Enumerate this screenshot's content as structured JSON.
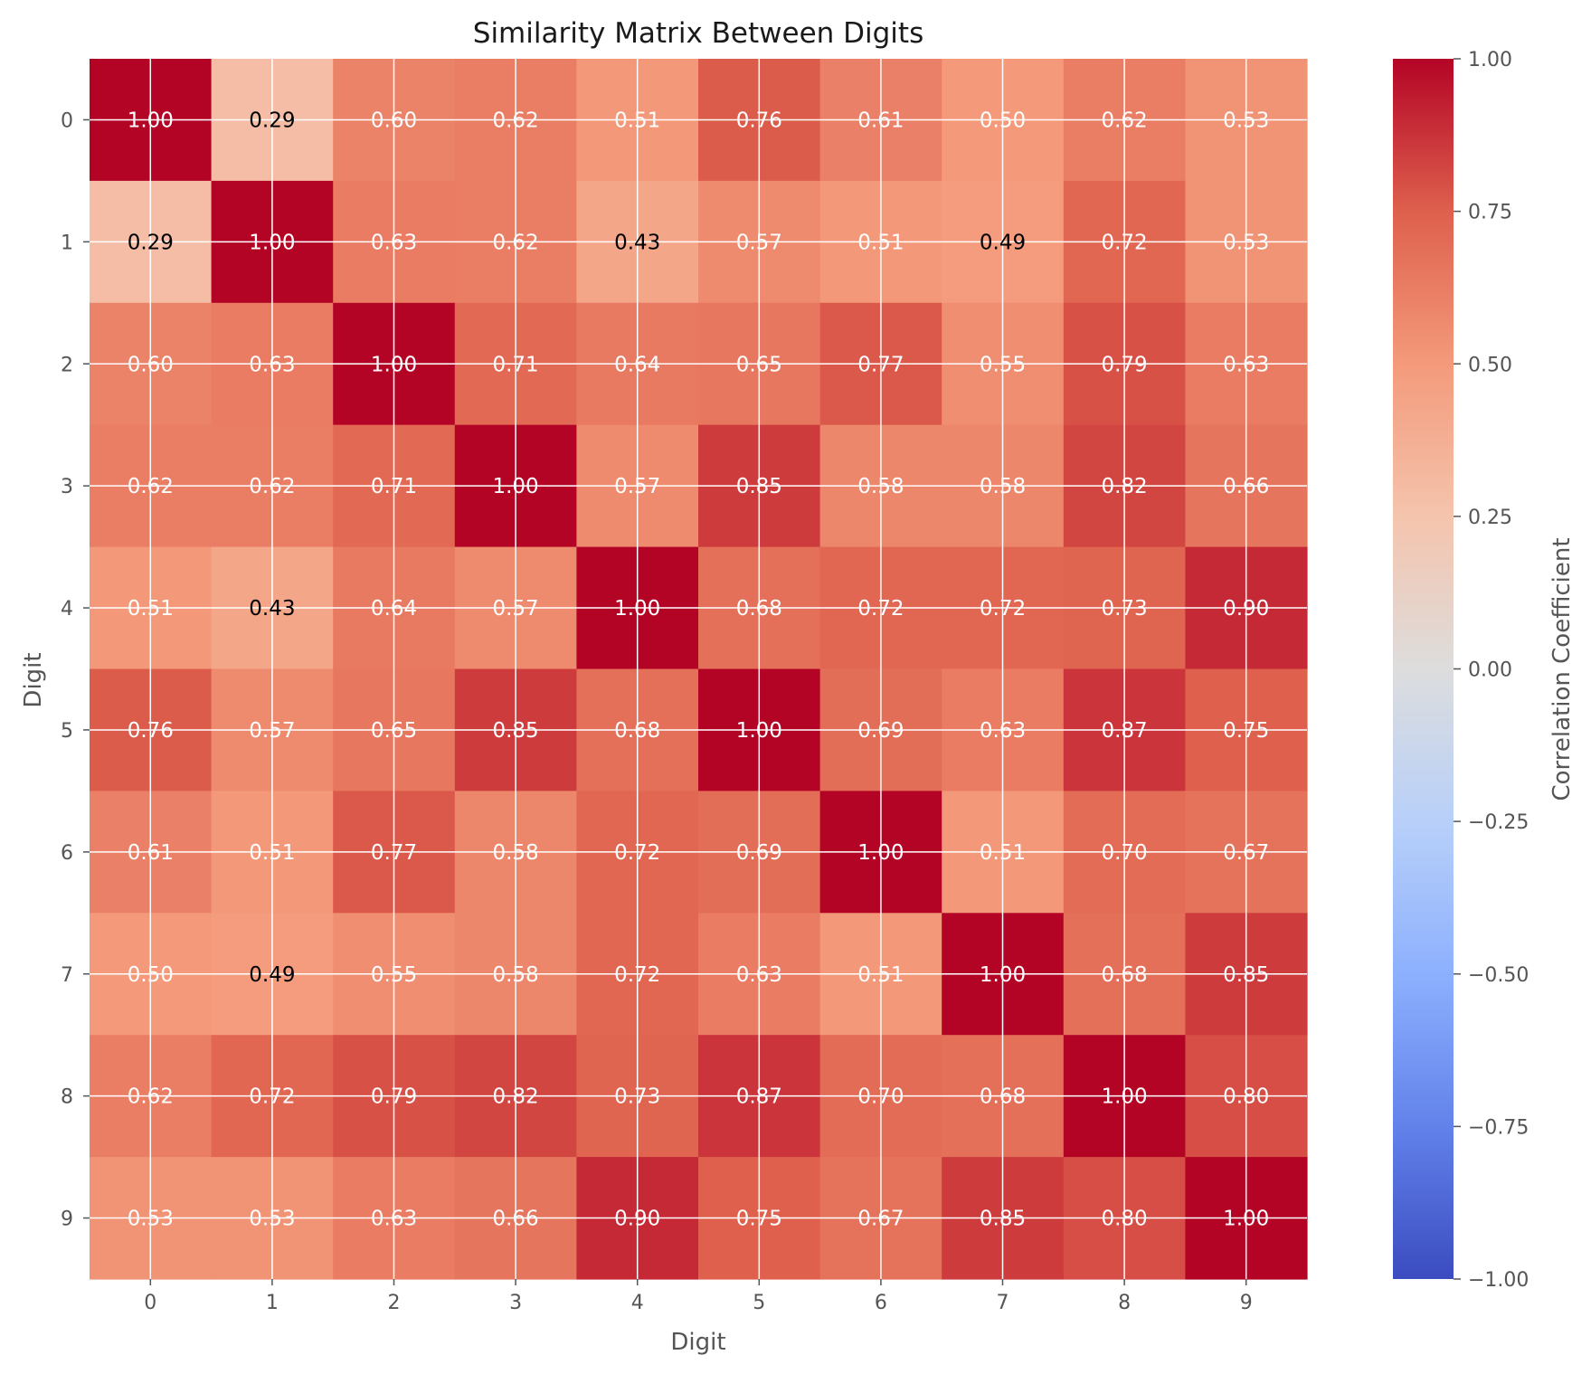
{
  "chart_data": {
    "type": "heatmap",
    "title": "Similarity Matrix Between Digits",
    "xlabel": "Digit",
    "ylabel": "Digit",
    "x_categories": [
      "0",
      "1",
      "2",
      "3",
      "4",
      "5",
      "6",
      "7",
      "8",
      "9"
    ],
    "y_categories": [
      "0",
      "1",
      "2",
      "3",
      "4",
      "5",
      "6",
      "7",
      "8",
      "9"
    ],
    "values": [
      [
        1.0,
        0.29,
        0.6,
        0.62,
        0.51,
        0.76,
        0.61,
        0.5,
        0.62,
        0.53
      ],
      [
        0.29,
        1.0,
        0.63,
        0.62,
        0.43,
        0.57,
        0.51,
        0.49,
        0.72,
        0.53
      ],
      [
        0.6,
        0.63,
        1.0,
        0.71,
        0.64,
        0.65,
        0.77,
        0.55,
        0.79,
        0.63
      ],
      [
        0.62,
        0.62,
        0.71,
        1.0,
        0.57,
        0.85,
        0.58,
        0.58,
        0.82,
        0.66
      ],
      [
        0.51,
        0.43,
        0.64,
        0.57,
        1.0,
        0.68,
        0.72,
        0.72,
        0.73,
        0.9
      ],
      [
        0.76,
        0.57,
        0.65,
        0.85,
        0.68,
        1.0,
        0.69,
        0.63,
        0.87,
        0.75
      ],
      [
        0.61,
        0.51,
        0.77,
        0.58,
        0.72,
        0.69,
        1.0,
        0.51,
        0.7,
        0.67
      ],
      [
        0.5,
        0.49,
        0.55,
        0.58,
        0.72,
        0.63,
        0.51,
        1.0,
        0.68,
        0.85
      ],
      [
        0.62,
        0.72,
        0.79,
        0.82,
        0.73,
        0.87,
        0.7,
        0.68,
        1.0,
        0.8
      ],
      [
        0.53,
        0.53,
        0.63,
        0.66,
        0.9,
        0.75,
        0.67,
        0.85,
        0.8,
        1.0
      ]
    ],
    "value_format": "0.00",
    "colormap": "coolwarm",
    "vmin": -1.0,
    "vmax": 1.0,
    "colorbar": {
      "label": "Correlation Coefficient",
      "ticks": [
        1.0,
        0.75,
        0.5,
        0.25,
        0.0,
        -0.25,
        -0.5,
        -0.75,
        -1.0
      ],
      "tick_labels": [
        "1.00",
        "0.75",
        "0.50",
        "0.25",
        "0.00",
        "−0.25",
        "−0.50",
        "−0.75",
        "−1.00"
      ],
      "position": "right"
    },
    "grid": true,
    "annotation_colors": {
      "light": "#ffffff",
      "dark": "#000000"
    }
  }
}
